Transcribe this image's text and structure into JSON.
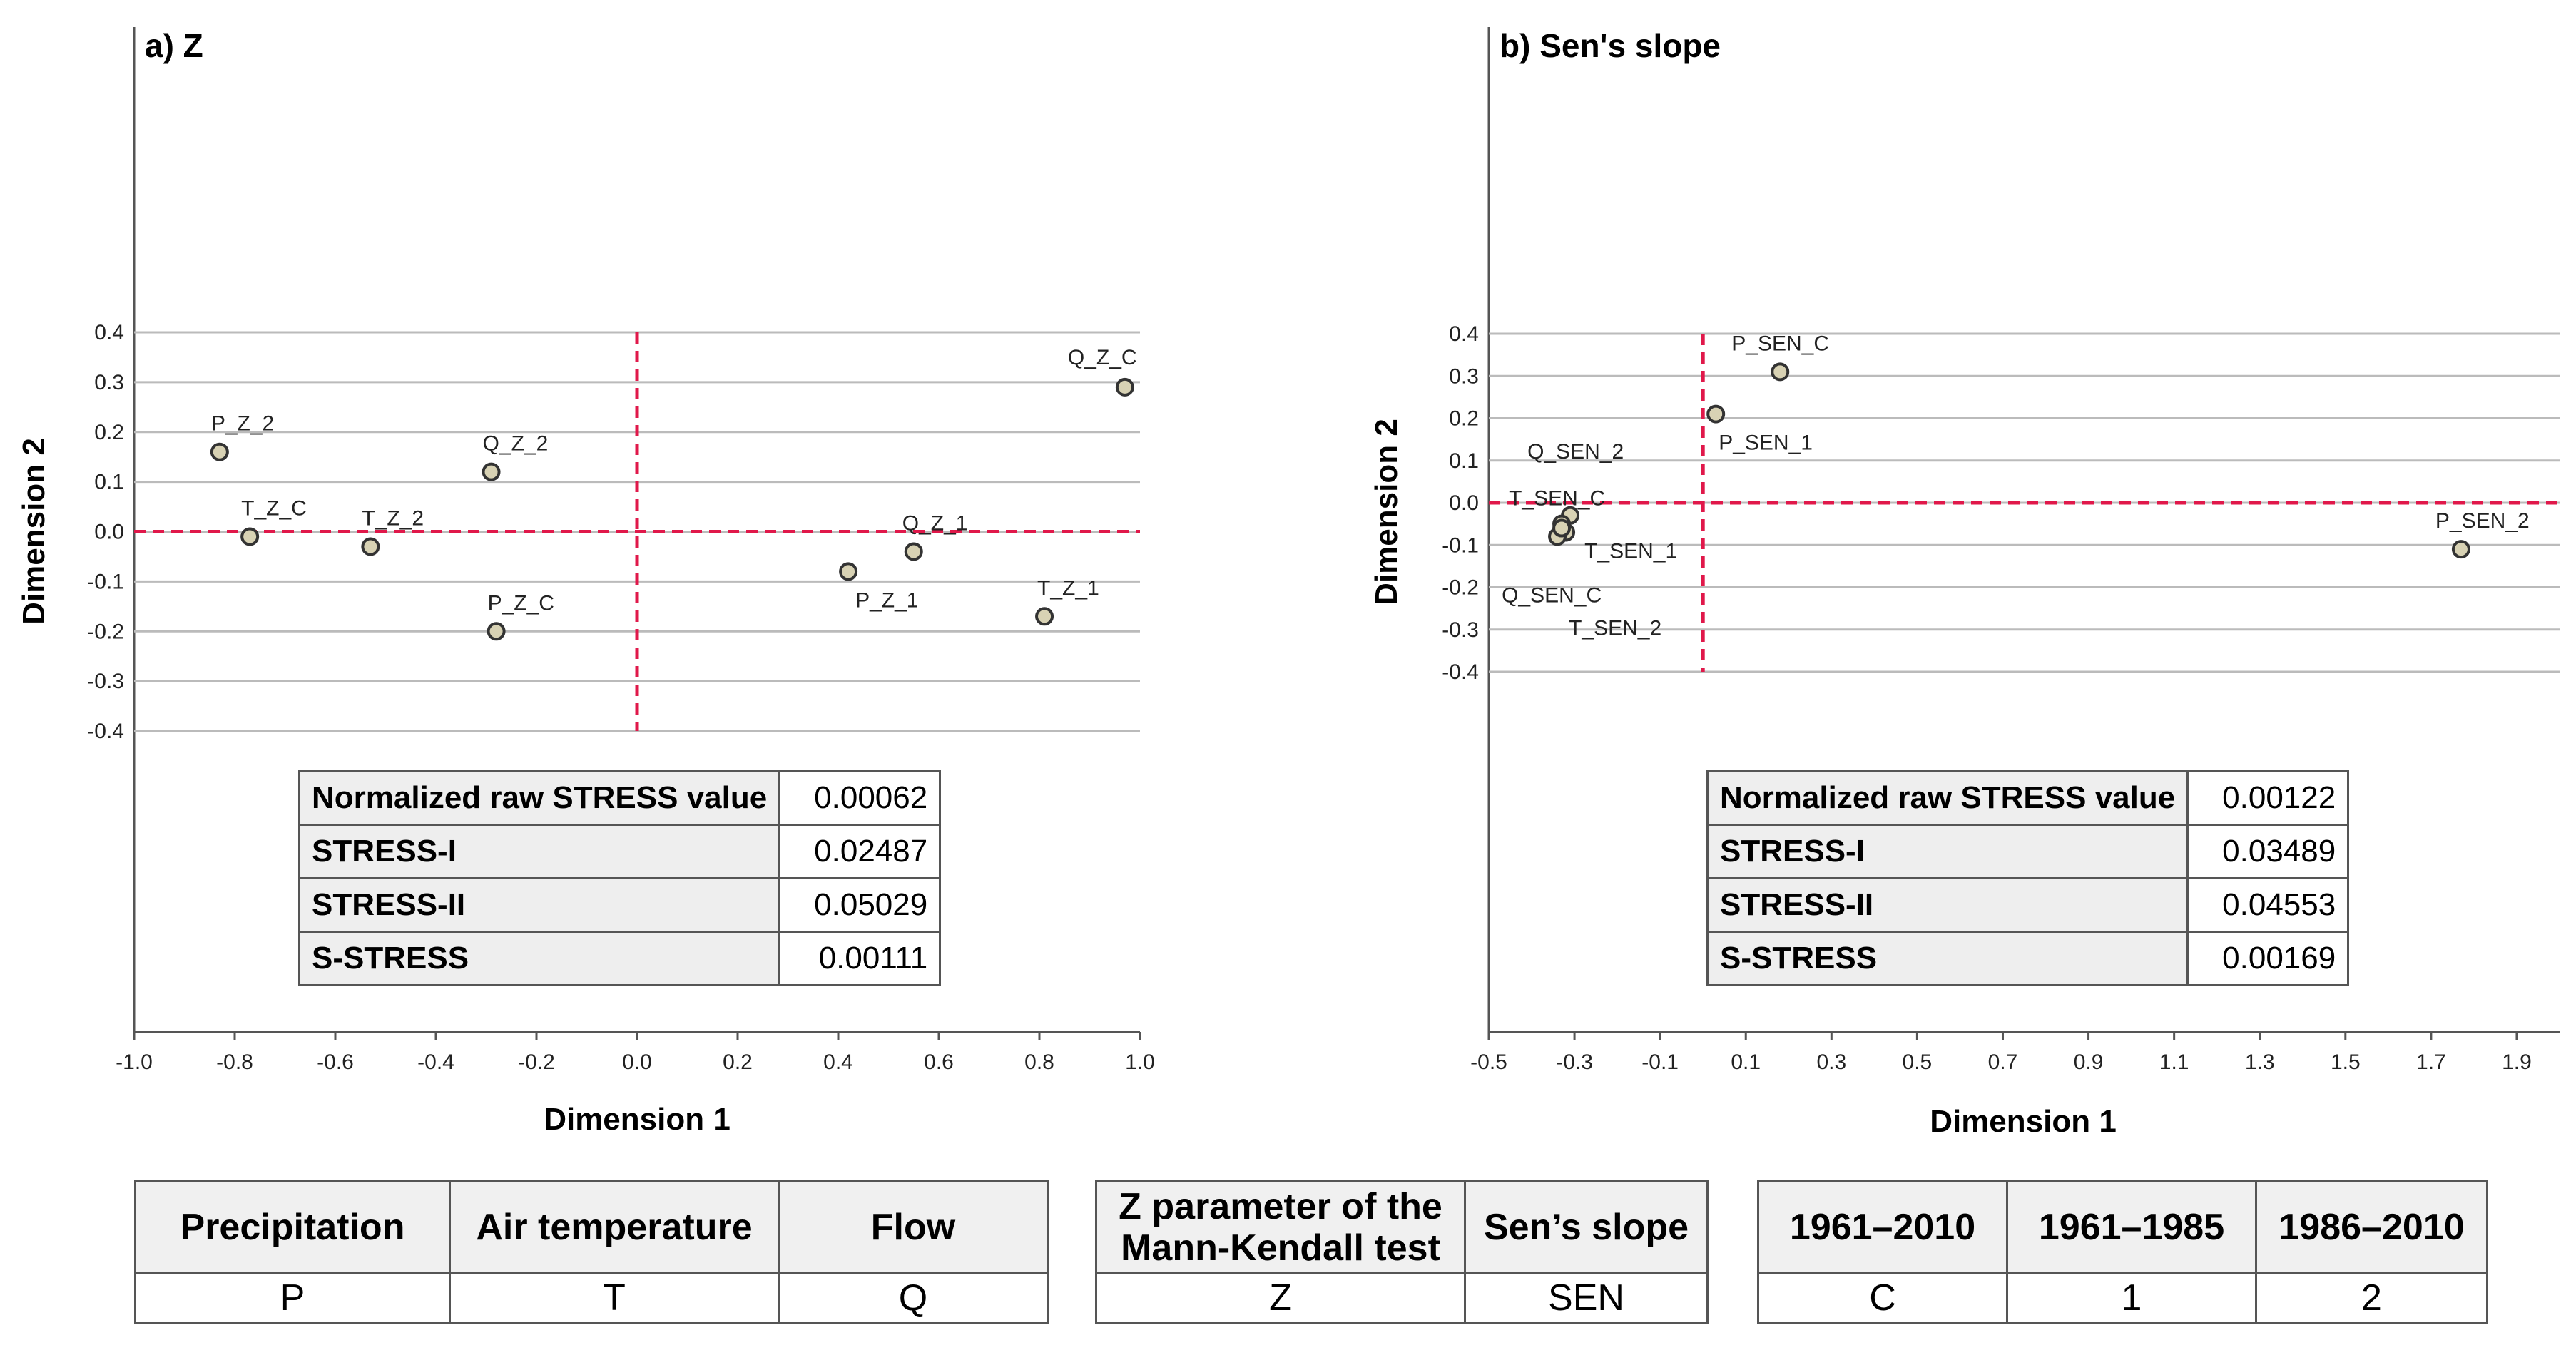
{
  "chart_data": [
    {
      "type": "scatter",
      "title": "a) Z",
      "xlabel": "Dimension 1",
      "ylabel": "Dimension 2",
      "xlim": [
        -1.0,
        1.0
      ],
      "ylim": [
        -0.4,
        0.4
      ],
      "xticks": [
        -1.0,
        -0.8,
        -0.6,
        -0.4,
        -0.2,
        0.0,
        0.2,
        0.4,
        0.6,
        0.8,
        1.0
      ],
      "xtick_labels": [
        "-1.0",
        "-0.8",
        "-0.6",
        "-0.4",
        "-0.2",
        "0.0",
        "0.2",
        "0.4",
        "0.6",
        "0.8",
        "1.0"
      ],
      "yticks": [
        0.4,
        0.3,
        0.2,
        0.1,
        0.0,
        -0.1,
        -0.2,
        -0.3,
        -0.4
      ],
      "ytick_labels": [
        "0.4",
        "0.3",
        "0.2",
        "0.1",
        "0.0",
        "-0.1",
        "-0.2",
        "-0.3",
        "-0.4"
      ],
      "grid": "horizontal",
      "reference_lines": {
        "x": 0.0,
        "y": 0.0
      },
      "points": [
        {
          "label": "P_Z_2",
          "x": -0.83,
          "y": 0.16
        },
        {
          "label": "T_Z_C",
          "x": -0.77,
          "y": -0.01
        },
        {
          "label": "T_Z_2",
          "x": -0.53,
          "y": -0.03
        },
        {
          "label": "Q_Z_2",
          "x": -0.29,
          "y": 0.12
        },
        {
          "label": "P_Z_C",
          "x": -0.28,
          "y": -0.2
        },
        {
          "label": "P_Z_1",
          "x": 0.42,
          "y": -0.08
        },
        {
          "label": "Q_Z_1",
          "x": 0.55,
          "y": -0.04
        },
        {
          "label": "T_Z_1",
          "x": 0.81,
          "y": -0.17
        },
        {
          "label": "Q_Z_C",
          "x": 0.97,
          "y": 0.29
        }
      ],
      "stress_table": [
        {
          "label": "Normalized raw STRESS value",
          "value": "0.00062"
        },
        {
          "label": "STRESS-I",
          "value": "0.02487"
        },
        {
          "label": "STRESS-II",
          "value": "0.05029"
        },
        {
          "label": "S-STRESS",
          "value": "0.00111"
        }
      ]
    },
    {
      "type": "scatter",
      "title": "b) Sen's slope",
      "xlabel": "Dimension 1",
      "ylabel": "Dimension 2",
      "xlim": [
        -0.5,
        2.0
      ],
      "ylim": [
        -0.4,
        0.4
      ],
      "xticks": [
        -0.5,
        -0.3,
        -0.1,
        0.1,
        0.3,
        0.5,
        0.7,
        0.9,
        1.1,
        1.3,
        1.5,
        1.7,
        1.9
      ],
      "xtick_labels": [
        "-0.5",
        "-0.3",
        "-0.1",
        "0.1",
        "0.3",
        "0.5",
        "0.7",
        "0.9",
        "1.1",
        "1.3",
        "1.5",
        "1.7",
        "1.9"
      ],
      "yticks": [
        0.4,
        0.3,
        0.2,
        0.1,
        0.0,
        -0.1,
        -0.2,
        -0.3,
        -0.4
      ],
      "ytick_labels": [
        "0.4",
        "0.3",
        "0.2",
        "0.1",
        "0.0",
        "-0.1",
        "-0.2",
        "-0.3",
        "-0.4"
      ],
      "grid": "horizontal",
      "reference_lines": {
        "x": 0.0,
        "y": 0.0
      },
      "points": [
        {
          "label": "P_SEN_C",
          "x": 0.18,
          "y": 0.31
        },
        {
          "label": "P_SEN_1",
          "x": 0.03,
          "y": 0.21
        },
        {
          "label": "Q_SEN_2",
          "x": -0.31,
          "y": -0.03
        },
        {
          "label": "T_SEN_C",
          "x": -0.33,
          "y": -0.05
        },
        {
          "label": "T_SEN_1",
          "x": -0.32,
          "y": -0.07
        },
        {
          "label": "Q_SEN_C",
          "x": -0.34,
          "y": -0.08
        },
        {
          "label": "T_SEN_2",
          "x": -0.33,
          "y": -0.06
        },
        {
          "label": "P_SEN_2",
          "x": 1.77,
          "y": -0.11
        }
      ],
      "stress_table": [
        {
          "label": "Normalized raw STRESS value",
          "value": "0.00122"
        },
        {
          "label": "STRESS-I",
          "value": "0.03489"
        },
        {
          "label": "STRESS-II",
          "value": "0.04553"
        },
        {
          "label": "S-STRESS",
          "value": "0.00169"
        }
      ]
    }
  ],
  "legend_tables": [
    {
      "headers": [
        "Precipitation",
        "Air temperature",
        "Flow"
      ],
      "codes": [
        "P",
        "T",
        "Q"
      ]
    },
    {
      "headers": [
        "Z parameter of the Mann-Kendall test",
        "Sen’s slope"
      ],
      "codes": [
        "Z",
        "SEN"
      ]
    },
    {
      "headers": [
        "1961–2010",
        "1961–1985",
        "1986–2010"
      ],
      "codes": [
        "C",
        "1",
        "2"
      ]
    }
  ],
  "colors": {
    "reference_line": "#e0184a",
    "marker_fill": "#d8d2b4",
    "marker_stroke": "#333333",
    "grid": "#bbbbbb"
  }
}
